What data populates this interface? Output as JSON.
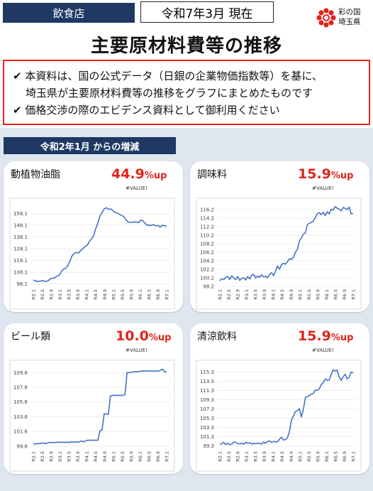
{
  "header": {
    "category": "飲食店",
    "as_of": "令和7年3月 現在",
    "logo_line1": "彩の国",
    "logo_line2": "埼玉県",
    "title": "主要原材料費等の推移"
  },
  "notice": {
    "line1": "✔ 本資料は、国の公式データ（日銀の企業物価指数等）を基に、",
    "line2": "埼玉県が主要原材料費等の推移をグラフにまとめたものです",
    "line3": "✔ 価格交渉の際のエビデンス資料として御利用ください"
  },
  "since_label": "令和2年1月 からの増減",
  "cards": [
    {
      "name": "動植物油脂",
      "pct": "44.9",
      "unit": "%up",
      "value_text": "#VALUE!"
    },
    {
      "name": "調味料",
      "pct": "15.9",
      "unit": "%up",
      "value_text": "#VALUE!"
    },
    {
      "name": "ビール類",
      "pct": "10.0",
      "unit": "%up",
      "value_text": "#VALUE!"
    },
    {
      "name": "清涼飲料",
      "pct": "15.9",
      "unit": "%up",
      "value_text": "#VALUE!"
    }
  ],
  "colors": {
    "navy": "#1f3864",
    "red": "#e2231a",
    "line": "#4472c4",
    "band": "#dfe6f0"
  },
  "chart_data": [
    {
      "type": "line",
      "title": "動植物油脂",
      "x_ticks": [
        "R2.1",
        "R2.5",
        "R2.9",
        "R3.1",
        "R3.5",
        "R3.9",
        "R4.1",
        "R4.5",
        "R4.9",
        "R5.1",
        "R5.5",
        "R5.9",
        "R6.1",
        "R6.5",
        "R6.9",
        "R7.1"
      ],
      "y_ticks": [
        98.1,
        108.1,
        118.1,
        128.1,
        138.1,
        148.1,
        158.1
      ],
      "ylim": [
        96.1,
        165
      ],
      "series": [
        {
          "values": [
            101.5,
            100.8,
            100.2,
            100.5,
            100.9,
            100.6,
            100.2,
            101,
            102.5,
            103,
            103.5,
            104.8,
            105.5,
            108.5,
            110.8,
            111.5,
            113.5,
            117.5,
            122,
            124,
            125,
            124.5,
            126.5,
            128,
            130,
            131,
            134,
            136.5,
            139,
            145,
            150,
            156,
            159,
            162,
            163,
            161.5,
            162,
            160.5,
            159,
            158.5,
            157.5,
            156.5,
            155.5,
            153,
            151,
            150.5,
            150.5,
            151,
            150.8,
            150.3,
            152.5,
            151.8,
            149.5,
            148,
            148.2,
            148,
            148.6,
            147.5,
            148,
            146.5,
            148,
            147.8,
            147.2
          ]
        }
      ]
    },
    {
      "type": "line",
      "title": "調味料",
      "x_ticks": [
        "R2.1",
        "R2.5",
        "R2.9",
        "R3.1",
        "R3.5",
        "R3.9",
        "R4.1",
        "R4.5",
        "R4.9",
        "R5.1",
        "R5.5",
        "R5.9",
        "R6.1",
        "R6.5",
        "R6.9",
        "R7.1"
      ],
      "y_ticks": [
        98.2,
        100.2,
        102.2,
        104.2,
        106.2,
        108.2,
        110.2,
        112.2,
        114.2,
        116.2
      ],
      "ylim": [
        98.2,
        117.2
      ],
      "series": [
        {
          "values": [
            99.5,
            100,
            99.8,
            100.3,
            100.5,
            99.8,
            100.7,
            100.1,
            99.8,
            100.5,
            99.6,
            100.1,
            100.2,
            99.7,
            100.5,
            99.9,
            100.8,
            101,
            100.2,
            100.6,
            100.3,
            100.9,
            100.4,
            100.6,
            100.2,
            101,
            101.4,
            100.7,
            101.8,
            103,
            102.2,
            103.3,
            103.6,
            103.4,
            104,
            104.7,
            104.5,
            105,
            106.2,
            106.9,
            108.8,
            109.6,
            110.5,
            110.7,
            112.7,
            113,
            113.2,
            113.5,
            114.4,
            115.2,
            115.5,
            115,
            115.6,
            114.8,
            115.7,
            115.2,
            116.3,
            116.1,
            116.9,
            116.5,
            116.3,
            115.9,
            116.7,
            116.5,
            116.2,
            116.8,
            115.2,
            115.3
          ]
        }
      ]
    },
    {
      "type": "line",
      "title": "ビール類",
      "x_ticks": [
        "R2.1",
        "R2.5",
        "R2.9",
        "R3.1",
        "R3.5",
        "R3.9",
        "R4.1",
        "R4.5",
        "R4.9",
        "R5.1",
        "R5.5",
        "R5.9",
        "R6.1",
        "R6.5",
        "R6.9",
        "R7.1"
      ],
      "y_ticks": [
        99.6,
        101.6,
        103.6,
        105.6,
        107.6,
        109.6
      ],
      "ylim": [
        99.3,
        110.3
      ],
      "series": [
        {
          "values": [
            99.9,
            99.9,
            99.95,
            99.95,
            100,
            100,
            99.95,
            100.05,
            100.1,
            100.1,
            100.1,
            100.1,
            100.15,
            100.1,
            100.15,
            100.1,
            100.15,
            100.1,
            100.2,
            100.15,
            100.15,
            100.2,
            100.15,
            100.3,
            100.2,
            100.3,
            100.4,
            100.4,
            100.4,
            100.4,
            100.4,
            100.4,
            101.7,
            101.8,
            104,
            104,
            103.9,
            106.4,
            106.5,
            106.5,
            106.5,
            106.5,
            106.5,
            106.5,
            106.6,
            109.6,
            109.6,
            109.6,
            109.7,
            109.7,
            109.7,
            109.75,
            109.8,
            109.8,
            109.8,
            109.8,
            109.8,
            109.8,
            109.8,
            109.8,
            109.8,
            109.9,
            110.05,
            109.7,
            109.7
          ]
        }
      ]
    },
    {
      "type": "line",
      "title": "清涼飲料",
      "x_ticks": [
        "R2.1",
        "R2.5",
        "R2.9",
        "R3.1",
        "R3.5",
        "R3.9",
        "R4.1",
        "R4.5",
        "R4.9",
        "R5.1",
        "R5.5",
        "R5.9",
        "R6.1",
        "R6.5",
        "R6.9",
        "R7.1"
      ],
      "y_ticks": [
        99.3,
        101.3,
        103.3,
        105.3,
        107.3,
        109.3,
        111.3,
        113.3,
        115.3
      ],
      "ylim": [
        98.8,
        116.3
      ],
      "series": [
        {
          "values": [
            99.7,
            99.8,
            100.1,
            99.6,
            99.9,
            99.6,
            99.7,
            100.2,
            100.1,
            99.8,
            99.8,
            99.9,
            99.7,
            100.1,
            99.9,
            100,
            99.7,
            99.9,
            99.8,
            99.9,
            99.9,
            99.7,
            100.2,
            99.9,
            100.3,
            100.4,
            100.1,
            100.3,
            100.2,
            100.2,
            100.8,
            101.2,
            100.6,
            100.7,
            101.1,
            102.5,
            104.9,
            105.8,
            106.8,
            106.9,
            107.4,
            105.6,
            107.3,
            109.8,
            110,
            110.2,
            110.5,
            110.7,
            111.4,
            111.3,
            111.7,
            112.6,
            113,
            113.8,
            113.5,
            113.6,
            114.8,
            115.8,
            115.5,
            115.7,
            114.2,
            113.5,
            114.3,
            114.8,
            113.8,
            114.2,
            115.3,
            115.1
          ]
        }
      ]
    }
  ]
}
